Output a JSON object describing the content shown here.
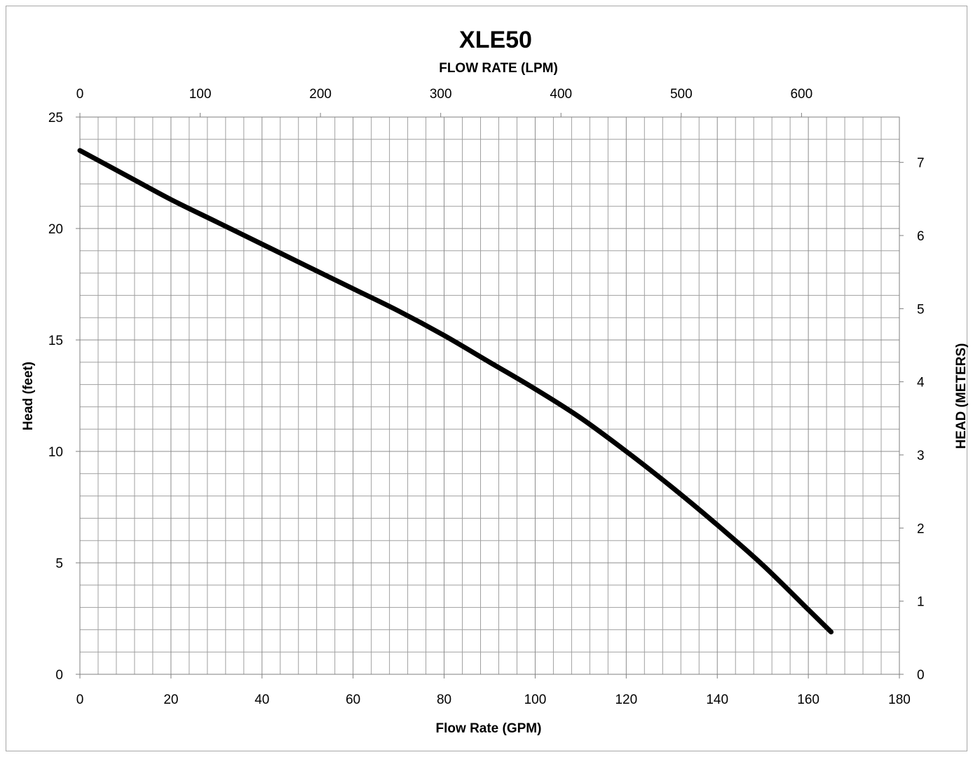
{
  "chart_data": {
    "type": "line",
    "title": "XLE50",
    "xlabel": "Flow Rate (GPM)",
    "x2label": "FLOW RATE (LPM)",
    "ylabel": "Head (feet)",
    "y2label": "HEAD (METERS)",
    "xlim": [
      0,
      180
    ],
    "ylim": [
      0,
      25
    ],
    "x2lim": [
      0,
      681.4
    ],
    "y2lim": [
      0,
      7.62
    ],
    "x_ticks": [
      0,
      20,
      40,
      60,
      80,
      100,
      120,
      140,
      160,
      180
    ],
    "y_ticks": [
      0,
      5,
      10,
      15,
      20,
      25
    ],
    "x2_ticks": [
      0,
      100,
      200,
      300,
      400,
      500,
      600
    ],
    "y2_ticks": [
      0,
      1,
      2,
      3,
      4,
      5,
      6,
      7
    ],
    "x_minor_step": 4,
    "y_minor_step": 1,
    "grid": true,
    "line_color": "#000000",
    "series": [
      {
        "x": [
          0,
          10,
          20,
          30,
          40,
          50,
          60,
          70,
          80,
          90,
          100,
          110,
          120,
          130,
          140,
          150,
          160,
          165
        ],
        "y": [
          23.5,
          22.4,
          21.3,
          20.3,
          19.3,
          18.3,
          17.3,
          16.3,
          15.2,
          14.0,
          12.8,
          11.5,
          10.0,
          8.4,
          6.7,
          4.9,
          2.9,
          1.9
        ]
      }
    ]
  }
}
